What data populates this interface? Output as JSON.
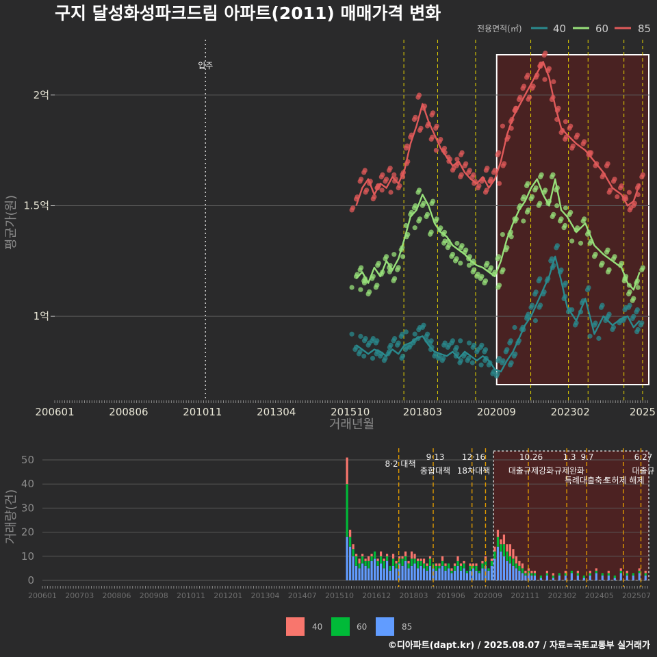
{
  "chart_data": [
    {
      "type": "line",
      "title": "구지 달성화성파크드림 아파트(2011) 매매가격 변화",
      "xlabel": "거래년월",
      "ylabel": "평균가(원)",
      "x_ticks": [
        "200601",
        "200806",
        "201011",
        "201304",
        "201510",
        "201803",
        "202009",
        "202302",
        "2025"
      ],
      "y_ticks": [
        {
          "value": 1.0,
          "label": "1억"
        },
        {
          "value": 1.5,
          "label": "1.5억"
        },
        {
          "value": 2.0,
          "label": "2억"
        }
      ],
      "ylim": [
        0.62,
        2.25
      ],
      "xlim": [
        2006.0,
        2025.75
      ],
      "legend_title": "전용면적(㎡)",
      "legend_labels": [
        "40",
        "60",
        "85"
      ],
      "move_in": {
        "x": 2011.0,
        "label": "입주"
      },
      "policy_lines": [
        2017.58,
        2018.7,
        2019.96,
        2021.79,
        2023.04,
        2023.69,
        2024.88,
        2025.5
      ],
      "highlight_range": [
        2020.66,
        2025.75
      ],
      "series": [
        {
          "name": "40",
          "color": "#2a8a8e",
          "x": [
            2016.0,
            2016.2,
            2016.4,
            2016.6,
            2016.8,
            2017.0,
            2017.2,
            2017.4,
            2017.6,
            2017.8,
            2018.0,
            2018.2,
            2018.4,
            2018.6,
            2018.8,
            2019.0,
            2019.2,
            2019.4,
            2019.6,
            2019.8,
            2020.0,
            2020.2,
            2020.4,
            2020.6,
            2020.8,
            2021.0,
            2021.2,
            2021.4,
            2021.6,
            2021.8,
            2022.0,
            2022.2,
            2022.4,
            2022.6,
            2022.8,
            2023.0,
            2023.3,
            2023.6,
            2023.9,
            2024.2,
            2024.5,
            2024.8,
            2025.0,
            2025.2,
            2025.4
          ],
          "values": [
            0.87,
            0.85,
            0.83,
            0.85,
            0.84,
            0.82,
            0.85,
            0.83,
            0.87,
            0.88,
            0.9,
            0.91,
            0.87,
            0.84,
            0.83,
            0.82,
            0.84,
            0.81,
            0.84,
            0.82,
            0.8,
            0.82,
            0.8,
            0.76,
            0.75,
            0.8,
            0.84,
            0.9,
            0.96,
            1.0,
            1.06,
            1.12,
            1.18,
            1.27,
            1.16,
            1.04,
            0.98,
            1.08,
            0.92,
            1.0,
            0.96,
            0.99,
            1.0,
            0.95,
            0.98
          ]
        },
        {
          "name": "60",
          "color": "#97e07a",
          "x": [
            2016.0,
            2016.2,
            2016.4,
            2016.6,
            2016.8,
            2017.0,
            2017.2,
            2017.4,
            2017.6,
            2017.8,
            2018.0,
            2018.2,
            2018.4,
            2018.6,
            2018.8,
            2019.0,
            2019.2,
            2019.4,
            2019.6,
            2019.8,
            2020.0,
            2020.2,
            2020.4,
            2020.6,
            2020.8,
            2021.0,
            2021.2,
            2021.4,
            2021.6,
            2021.8,
            2022.0,
            2022.2,
            2022.4,
            2022.6,
            2022.8,
            2023.0,
            2023.3,
            2023.6,
            2023.9,
            2024.2,
            2024.5,
            2024.8,
            2025.0,
            2025.2,
            2025.4
          ],
          "values": [
            1.17,
            1.2,
            1.15,
            1.22,
            1.18,
            1.25,
            1.21,
            1.26,
            1.35,
            1.45,
            1.48,
            1.55,
            1.5,
            1.42,
            1.38,
            1.36,
            1.32,
            1.3,
            1.28,
            1.25,
            1.23,
            1.22,
            1.2,
            1.18,
            1.25,
            1.35,
            1.42,
            1.48,
            1.52,
            1.58,
            1.62,
            1.55,
            1.5,
            1.62,
            1.48,
            1.45,
            1.38,
            1.42,
            1.32,
            1.28,
            1.25,
            1.22,
            1.15,
            1.12,
            1.2
          ]
        },
        {
          "name": "85",
          "color": "#e05a5a",
          "x": [
            2016.0,
            2016.2,
            2016.4,
            2016.6,
            2016.8,
            2017.0,
            2017.2,
            2017.4,
            2017.6,
            2017.8,
            2018.0,
            2018.2,
            2018.4,
            2018.6,
            2018.8,
            2019.0,
            2019.2,
            2019.4,
            2019.6,
            2019.8,
            2020.0,
            2020.2,
            2020.4,
            2020.6,
            2020.8,
            2021.0,
            2021.2,
            2021.4,
            2021.6,
            2021.8,
            2022.0,
            2022.2,
            2022.4,
            2022.6,
            2022.8,
            2023.0,
            2023.3,
            2023.6,
            2023.9,
            2024.2,
            2024.5,
            2024.8,
            2025.0,
            2025.2,
            2025.4
          ],
          "values": [
            1.5,
            1.58,
            1.62,
            1.55,
            1.6,
            1.58,
            1.63,
            1.6,
            1.66,
            1.78,
            1.86,
            1.96,
            1.88,
            1.82,
            1.76,
            1.72,
            1.68,
            1.7,
            1.65,
            1.62,
            1.6,
            1.63,
            1.58,
            1.62,
            1.7,
            1.82,
            1.9,
            1.95,
            2.0,
            2.05,
            2.1,
            2.15,
            2.08,
            1.95,
            1.85,
            1.82,
            1.78,
            1.75,
            1.7,
            1.65,
            1.58,
            1.55,
            1.5,
            1.52,
            1.6
          ]
        }
      ]
    },
    {
      "type": "bar",
      "ylabel": "거래량(건)",
      "ylim": [
        0,
        52
      ],
      "y_ticks": [
        0,
        10,
        20,
        30,
        40,
        50
      ],
      "x_ticks": [
        "200601",
        "200703",
        "200806",
        "200908",
        "201011",
        "201201",
        "201304",
        "201407",
        "201510",
        "201612",
        "201803",
        "201906",
        "202009",
        "202111",
        "202302",
        "202405",
        "202507"
      ],
      "series_names": [
        "40",
        "60",
        "85"
      ],
      "series_colors": [
        "#f8766d",
        "#00ba38",
        "#619cff"
      ],
      "months": [
        2015.9,
        2016.0,
        2016.1,
        2016.2,
        2016.3,
        2016.4,
        2016.5,
        2016.6,
        2016.7,
        2016.8,
        2016.9,
        2017.0,
        2017.1,
        2017.2,
        2017.3,
        2017.4,
        2017.5,
        2017.6,
        2017.7,
        2017.8,
        2017.9,
        2018.0,
        2018.1,
        2018.2,
        2018.3,
        2018.4,
        2018.5,
        2018.6,
        2018.7,
        2018.8,
        2018.9,
        2019.0,
        2019.1,
        2019.2,
        2019.3,
        2019.4,
        2019.5,
        2019.6,
        2019.7,
        2019.8,
        2019.9,
        2020.0,
        2020.1,
        2020.2,
        2020.3,
        2020.4,
        2020.5,
        2020.6,
        2020.7,
        2020.8,
        2020.9,
        2021.0,
        2021.1,
        2021.2,
        2021.3,
        2021.4,
        2021.5,
        2021.6,
        2021.7,
        2021.8,
        2021.9,
        2022.0,
        2022.2,
        2022.4,
        2022.6,
        2022.8,
        2023.0,
        2023.2,
        2023.4,
        2023.6,
        2023.8,
        2024.0,
        2024.2,
        2024.4,
        2024.6,
        2024.8,
        2025.0,
        2025.2,
        2025.4,
        2025.6
      ],
      "values_40": [
        11,
        3,
        2,
        1,
        2,
        1,
        1,
        2,
        1,
        0,
        1,
        2,
        1,
        1,
        0,
        2,
        1,
        1,
        1,
        2,
        1,
        3,
        2,
        1,
        1,
        2,
        1,
        1,
        0,
        1,
        1,
        2,
        1,
        0,
        1,
        1,
        2,
        1,
        1,
        0,
        1,
        1,
        1,
        0,
        1,
        2,
        0,
        1,
        2,
        3,
        2,
        4,
        3,
        5,
        4,
        3,
        2,
        2,
        1,
        1,
        1,
        1,
        0,
        1,
        1,
        0,
        1,
        0,
        1,
        0,
        1,
        1,
        0,
        1,
        0,
        1,
        1,
        0,
        1,
        1
      ],
      "values_60": [
        22,
        4,
        3,
        4,
        2,
        3,
        2,
        3,
        2,
        3,
        2,
        3,
        3,
        2,
        2,
        3,
        2,
        2,
        3,
        2,
        2,
        3,
        2,
        3,
        2,
        2,
        2,
        3,
        2,
        2,
        1,
        2,
        2,
        2,
        1,
        2,
        2,
        2,
        2,
        1,
        2,
        1,
        2,
        1,
        2,
        2,
        1,
        2,
        3,
        4,
        3,
        5,
        4,
        3,
        3,
        2,
        2,
        2,
        1,
        1,
        1,
        1,
        1,
        1,
        1,
        1,
        1,
        1,
        1,
        1,
        1,
        1,
        1,
        1,
        1,
        1,
        1,
        1,
        1,
        1
      ],
      "values_85": [
        18,
        14,
        10,
        6,
        5,
        7,
        6,
        5,
        8,
        9,
        6,
        7,
        5,
        8,
        4,
        6,
        5,
        7,
        6,
        8,
        5,
        6,
        7,
        5,
        6,
        5,
        4,
        6,
        5,
        4,
        5,
        6,
        4,
        5,
        3,
        4,
        6,
        4,
        5,
        3,
        4,
        5,
        4,
        3,
        5,
        6,
        4,
        6,
        9,
        14,
        12,
        10,
        8,
        7,
        6,
        5,
        4,
        3,
        2,
        3,
        2,
        2,
        1,
        2,
        1,
        2,
        2,
        3,
        2,
        1,
        2,
        3,
        2,
        2,
        1,
        3,
        2,
        2,
        3,
        2
      ]
    }
  ],
  "policies": [
    {
      "date": "8·2",
      "name": "대책"
    },
    {
      "date": "9·13",
      "name": "종합대책"
    },
    {
      "date": "12·16",
      "name": "18차대책"
    },
    {
      "date": "10.26",
      "name": "대출규제강화"
    },
    {
      "date": "1.3",
      "name": "규제완화"
    },
    {
      "date": "9.7",
      "name": "특례대출축소"
    },
    {
      "date": "",
      "name": "토허제 해제"
    },
    {
      "date": "6.27",
      "name": "대출규"
    }
  ],
  "footer": "©디아파트(dapt.kr) / 2025.08.07 / 자료=국토교통부 실거래가"
}
